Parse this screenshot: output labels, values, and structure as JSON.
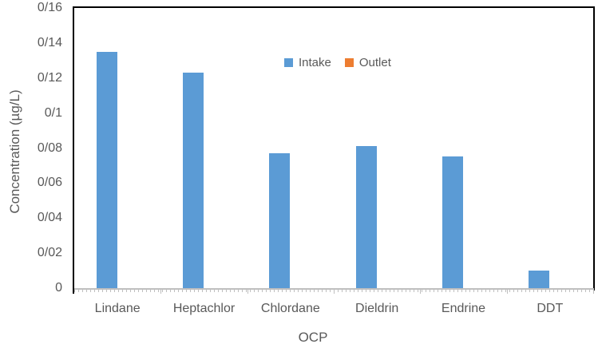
{
  "colors": {
    "background": "#FFFFFF",
    "text": "#595959",
    "plot_border": "#000000",
    "axis_line": "#BFBFBF",
    "intake": "#5B9BD5",
    "outlet": "#ED7D31"
  },
  "chart_data": {
    "type": "bar",
    "categories": [
      "Lindane",
      "Heptachlor",
      "Chlordane",
      "Dieldrin",
      "Endrine",
      "DDT"
    ],
    "series": [
      {
        "name": "Intake",
        "color": "#5B9BD5",
        "values": [
          0.135,
          0.123,
          0.077,
          0.081,
          0.075,
          0.01
        ]
      },
      {
        "name": "Outlet",
        "color": "#ED7D31",
        "values": [
          0,
          0,
          0,
          0,
          0,
          0
        ]
      }
    ],
    "title": "",
    "xlabel": "OCP",
    "ylabel": "Concentration (µg/L)",
    "ylim": [
      0,
      0.16
    ],
    "ytick_step": 0.02,
    "ytick_labels": [
      "0",
      "0/02",
      "0/04",
      "0/06",
      "0/08",
      "0/1",
      "0/12",
      "0/14",
      "0/16"
    ],
    "decimal_separator": "/",
    "legend_position": "top-center-inside",
    "grid": false
  }
}
